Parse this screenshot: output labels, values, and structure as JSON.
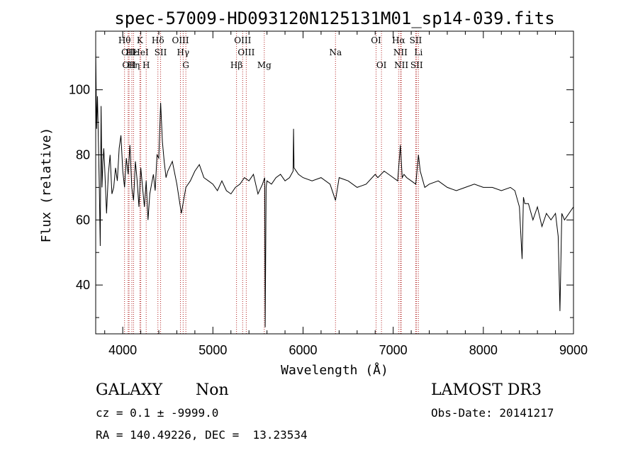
{
  "chart_data": {
    "type": "line",
    "title": "spec-57009-HD093120N125131M01_sp14-039.fits",
    "xlabel": "Wavelength (Å)",
    "ylabel": "Flux (relative)",
    "xlim": [
      3700,
      9000
    ],
    "ylim": [
      25,
      118
    ],
    "x_ticks": [
      4000,
      5000,
      6000,
      7000,
      8000,
      9000
    ],
    "y_ticks": [
      40,
      60,
      80,
      100
    ],
    "grid": false,
    "series": [
      {
        "name": "spectrum",
        "x": [
          3700,
          3710,
          3720,
          3730,
          3740,
          3750,
          3760,
          3770,
          3780,
          3790,
          3800,
          3820,
          3840,
          3860,
          3880,
          3900,
          3920,
          3940,
          3960,
          3980,
          4000,
          4020,
          4040,
          4060,
          4080,
          4100,
          4120,
          4140,
          4160,
          4180,
          4200,
          4220,
          4240,
          4260,
          4280,
          4300,
          4320,
          4340,
          4360,
          4380,
          4400,
          4420,
          4440,
          4460,
          4480,
          4500,
          4550,
          4600,
          4650,
          4700,
          4750,
          4800,
          4850,
          4900,
          4950,
          5000,
          5050,
          5100,
          5150,
          5200,
          5250,
          5300,
          5350,
          5400,
          5450,
          5500,
          5550,
          5575,
          5580,
          5590,
          5600,
          5650,
          5700,
          5750,
          5800,
          5850,
          5890,
          5895,
          5900,
          5950,
          6000,
          6100,
          6200,
          6300,
          6360,
          6400,
          6500,
          6600,
          6700,
          6800,
          6830,
          6900,
          7000,
          7050,
          7080,
          7100,
          7120,
          7150,
          7200,
          7250,
          7280,
          7300,
          7350,
          7400,
          7500,
          7600,
          7700,
          7800,
          7900,
          8000,
          8100,
          8200,
          8300,
          8350,
          8400,
          8430,
          8445,
          8460,
          8500,
          8550,
          8600,
          8650,
          8700,
          8750,
          8800,
          8830,
          8850,
          8870,
          8900,
          8950,
          9000
        ],
        "values": [
          112,
          88,
          98,
          84,
          70,
          52,
          95,
          70,
          78,
          82,
          76,
          62,
          74,
          80,
          68,
          70,
          76,
          72,
          82,
          86,
          75,
          70,
          79,
          74,
          83,
          70,
          66,
          78,
          72,
          64,
          76,
          70,
          64,
          72,
          60,
          68,
          71,
          74,
          69,
          80,
          79,
          96,
          84,
          78,
          73,
          75,
          78,
          71,
          62,
          70,
          72,
          75,
          77,
          73,
          72,
          71,
          69,
          72,
          69,
          68,
          70,
          71,
          73,
          72,
          74,
          68,
          71,
          73,
          27,
          70,
          72,
          71,
          73,
          74,
          72,
          73,
          75,
          88,
          76,
          74,
          73,
          72,
          73,
          71,
          66,
          73,
          72,
          70,
          71,
          74,
          73,
          75,
          73,
          72,
          83,
          73,
          74,
          73,
          72,
          71,
          80,
          75,
          70,
          71,
          72,
          70,
          69,
          70,
          71,
          70,
          70,
          69,
          70,
          69,
          64,
          48,
          67,
          65,
          65,
          60,
          64,
          58,
          62,
          60,
          62,
          55,
          32,
          62,
          60,
          62,
          64
        ]
      }
    ],
    "spectral_lines": [
      {
        "label": "Hθ",
        "x": 4020,
        "row": 1
      },
      {
        "label": "OII",
        "x": 4060,
        "row": 2
      },
      {
        "label": "OII",
        "x": 4070,
        "row": 3
      },
      {
        "label": "Hε",
        "x": 4101,
        "row": 2
      },
      {
        "label": "Hη",
        "x": 4120,
        "row": 3
      },
      {
        "label": "K",
        "x": 4190,
        "row": 1
      },
      {
        "label": "HeI",
        "x": 4200,
        "row": 2
      },
      {
        "label": "H",
        "x": 4260,
        "row": 3
      },
      {
        "label": "Hδ",
        "x": 4390,
        "row": 1
      },
      {
        "label": "SII",
        "x": 4420,
        "row": 2
      },
      {
        "label": "OIII",
        "x": 4640,
        "row": 1
      },
      {
        "label": "Hγ",
        "x": 4670,
        "row": 2
      },
      {
        "label": "G",
        "x": 4700,
        "row": 3
      },
      {
        "label": "OIII",
        "x": 5330,
        "row": 1
      },
      {
        "label": "OIII",
        "x": 5370,
        "row": 2
      },
      {
        "label": "Hβ",
        "x": 5262,
        "row": 3
      },
      {
        "label": "Mg",
        "x": 5570,
        "row": 3
      },
      {
        "label": "Na",
        "x": 6360,
        "row": 2
      },
      {
        "label": "OI",
        "x": 6810,
        "row": 1
      },
      {
        "label": "OI",
        "x": 6870,
        "row": 3
      },
      {
        "label": "Hα",
        "x": 7060,
        "row": 1
      },
      {
        "label": "NII",
        "x": 7080,
        "row": 2
      },
      {
        "label": "NII",
        "x": 7090,
        "row": 3
      },
      {
        "label": "SII",
        "x": 7250,
        "row": 1
      },
      {
        "label": "Li",
        "x": 7280,
        "row": 2
      },
      {
        "label": "SII",
        "x": 7260,
        "row": 3
      }
    ]
  },
  "footer": {
    "object_class": "GALAXY",
    "subclass": "Non",
    "survey": "LAMOST DR3",
    "cz_line": "cz = 0.1 ± -9999.0",
    "obs_date_line": "Obs-Date: 20141217",
    "coords_line": "RA = 140.49226, DEC =  13.23534"
  },
  "colors": {
    "line_marker": "#b22222",
    "spectrum": "#000000",
    "axes": "#000000"
  }
}
